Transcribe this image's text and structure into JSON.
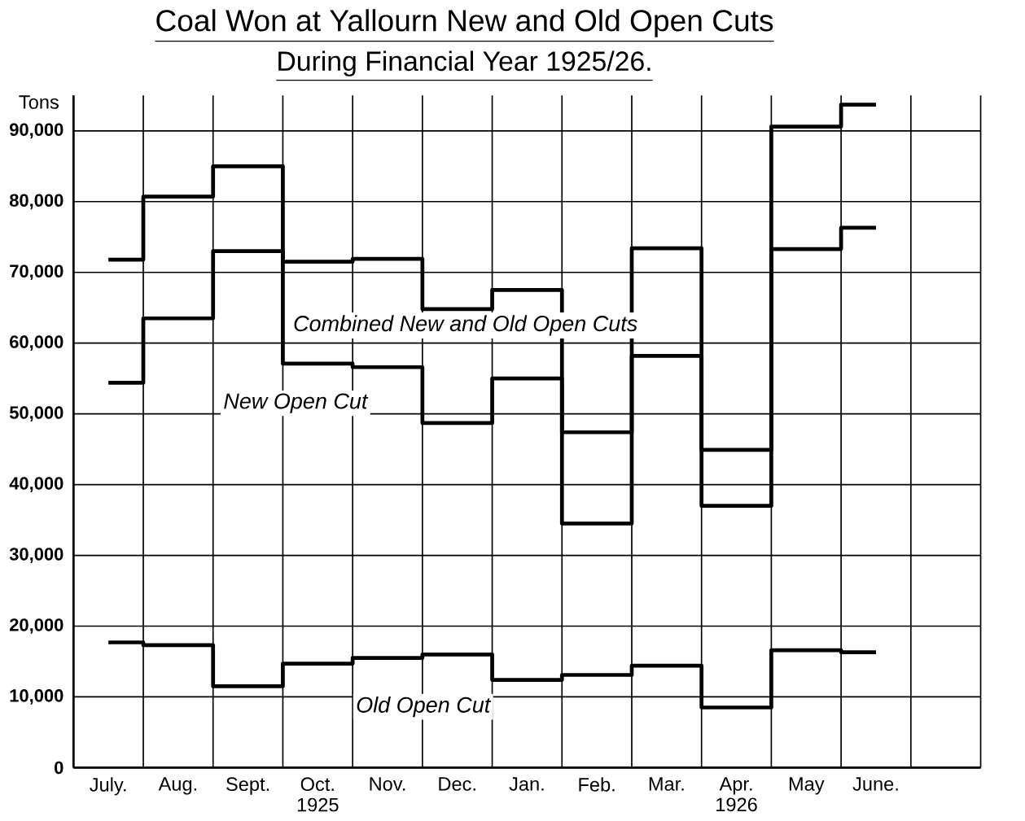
{
  "chart_data": {
    "type": "step",
    "title": "Coal Won at Yallourn New and Old Open Cuts",
    "subtitle": "During Financial Year 1925/26.",
    "ylabel": "Tons",
    "categories": [
      "July.",
      "Aug.",
      "Sept.",
      "Oct. 1925",
      "Nov.",
      "Dec.",
      "Jan.",
      "Feb.",
      "Mar.",
      "Apr. 1926",
      "May",
      "June."
    ],
    "series": [
      {
        "name": "Combined New and Old Open Cuts",
        "color": "#000000",
        "values": [
          71800,
          80700,
          85000,
          71500,
          71900,
          64800,
          67500,
          47400,
          73400,
          44900,
          90600,
          93700
        ]
      },
      {
        "name": "New Open Cut",
        "color": "#000000",
        "values": [
          54400,
          63500,
          73000,
          57100,
          56600,
          48700,
          55000,
          34500,
          58200,
          37000,
          73300,
          76300
        ]
      },
      {
        "name": "Old Open Cut",
        "color": "#000000",
        "values": [
          17700,
          17300,
          11500,
          14700,
          15500,
          16000,
          12400,
          13100,
          14400,
          8500,
          16600,
          16300
        ]
      }
    ],
    "ylim": [
      0,
      95000
    ],
    "yticks": [
      {
        "value": 0,
        "label": "0"
      },
      {
        "value": 10000,
        "label": "10,000"
      },
      {
        "value": 20000,
        "label": "20,000"
      },
      {
        "value": 30000,
        "label": "30,000"
      },
      {
        "value": 40000,
        "label": "40,000"
      },
      {
        "value": 50000,
        "label": "50,000"
      },
      {
        "value": 60000,
        "label": "60,000"
      },
      {
        "value": 70000,
        "label": "70,000"
      },
      {
        "value": 80000,
        "label": "80,000"
      },
      {
        "value": 90000,
        "label": "90,000"
      }
    ],
    "grid": true
  }
}
